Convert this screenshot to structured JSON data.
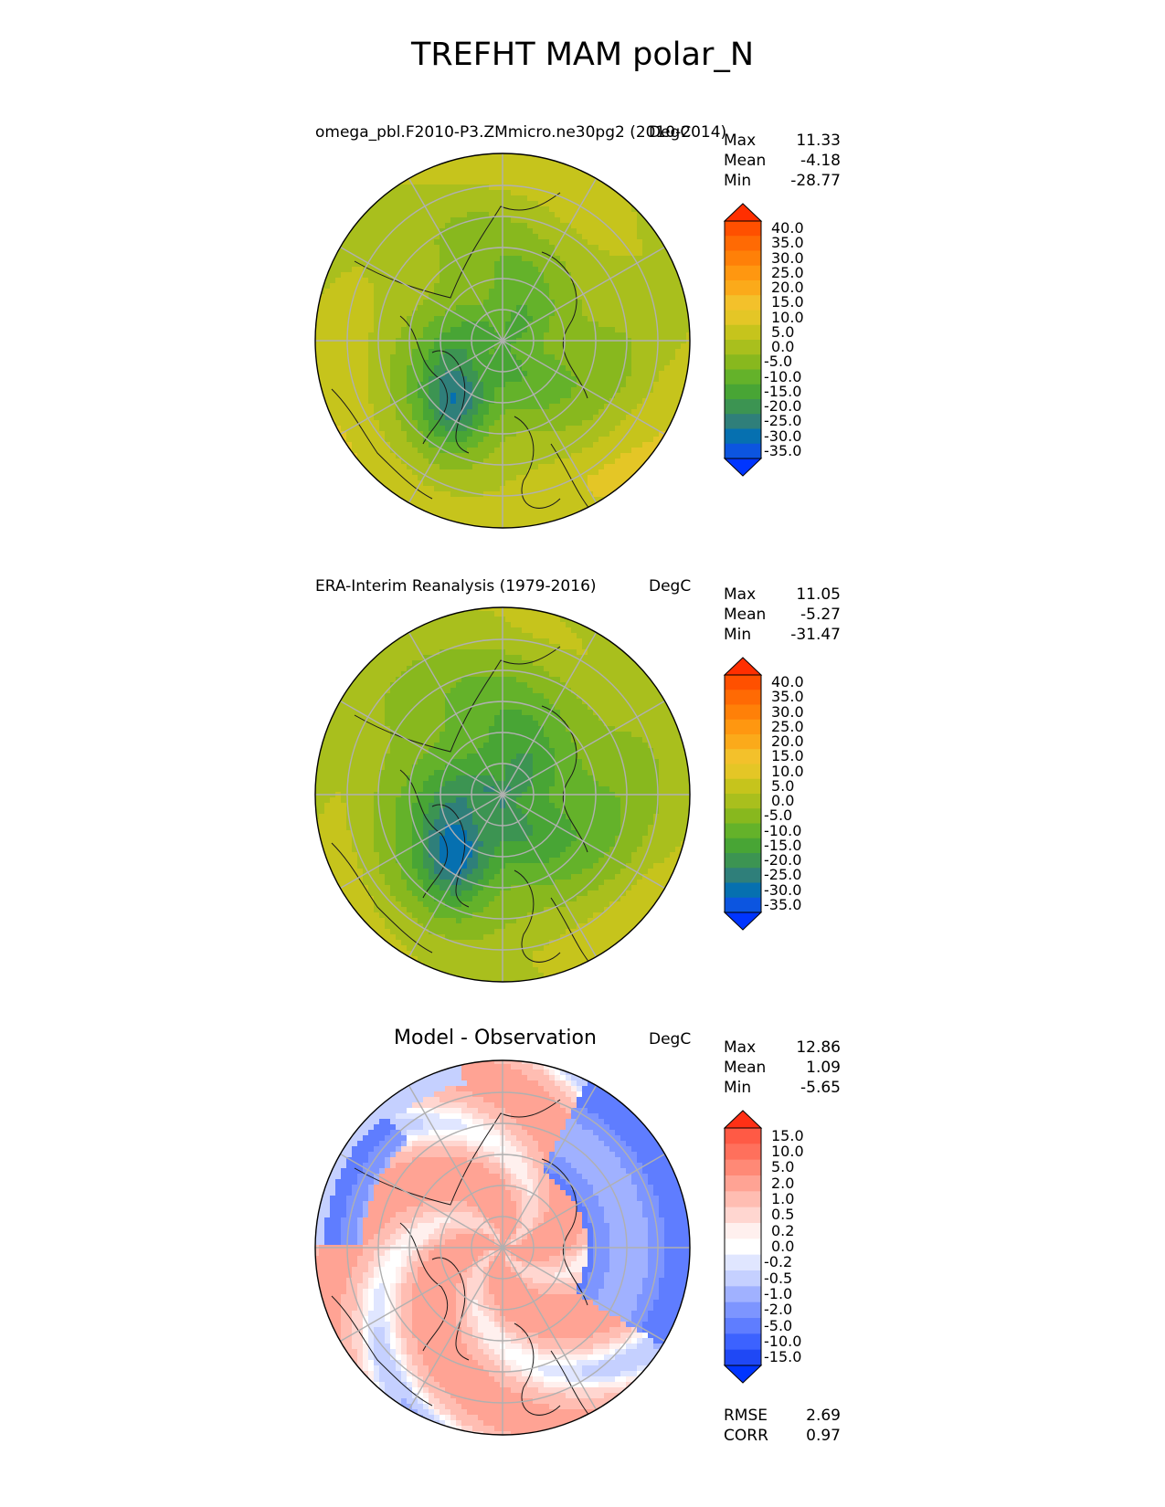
{
  "figure_title": "TREFHT MAM polar_N",
  "icons": {
    "map": "globe-icon",
    "colorbar": "gradient-icon"
  },
  "colors": {
    "contour": [
      "#0035ff",
      "#0c55e0",
      "#0670b0",
      "#2f7f7a",
      "#3c9452",
      "#48a535",
      "#64b22a",
      "#88b81e",
      "#a9bf1d",
      "#c6c41c",
      "#e4c626",
      "#f3c12b",
      "#fbaa1a",
      "#ff9710",
      "#ff8008",
      "#ff6a04",
      "#ff5000",
      "#ff2f00"
    ],
    "diff": [
      "#0035ff",
      "#1f48f5",
      "#3c62ff",
      "#5f7dff",
      "#7d95ff",
      "#a0b1ff",
      "#c5d0ff",
      "#e0e6ff",
      "#ffffff",
      "#fff0ee",
      "#ffd6d0",
      "#ffbdb2",
      "#ffa394",
      "#ff8976",
      "#ff705c",
      "#ff5a45",
      "#ff3015"
    ],
    "grid": "#b0b0b0",
    "coast": "#1a1a1a"
  },
  "panels": [
    {
      "id": "test",
      "title": "omega_pbl.F2010-P3.ZMmicro.ne30pg2 (2010-2014)",
      "units": "DegC",
      "stats": {
        "max_label": "Max",
        "max": "11.33",
        "mean_label": "Mean",
        "mean": "-4.18",
        "min_label": "Min",
        "min": "-28.77"
      },
      "colorbar": {
        "levels": [
          "40.0",
          "35.0",
          "30.0",
          "25.0",
          "20.0",
          "15.0",
          "10.0",
          "5.0",
          "0.0",
          "-5.0",
          "-10.0",
          "-15.0",
          "-20.0",
          "-25.0",
          "-30.0",
          "-35.0"
        ]
      },
      "field": {
        "center_value": -12.0,
        "rim_value": 6.0,
        "cold_pool_value": -26.0,
        "hot_rim_value": 10.0
      }
    },
    {
      "id": "ref",
      "title": "ERA-Interim Reanalysis (1979-2016)",
      "units": "DegC",
      "stats": {
        "max_label": "Max",
        "max": "11.05",
        "mean_label": "Mean",
        "mean": "-5.27",
        "min_label": "Min",
        "min": "-31.47"
      },
      "colorbar": {
        "levels": [
          "40.0",
          "35.0",
          "30.0",
          "25.0",
          "20.0",
          "15.0",
          "10.0",
          "5.0",
          "0.0",
          "-5.0",
          "-10.0",
          "-15.0",
          "-20.0",
          "-25.0",
          "-30.0",
          "-35.0"
        ]
      },
      "field": {
        "center_value": -19.0,
        "rim_value": 3.0,
        "cold_pool_value": -30.0,
        "hot_rim_value": 7.0
      }
    },
    {
      "id": "diff",
      "title": "Model - Observation",
      "units": "DegC",
      "stats": {
        "max_label": "Max",
        "max": "12.86",
        "mean_label": "Mean",
        "mean": "1.09",
        "min_label": "Min",
        "min": "-5.65"
      },
      "colorbar": {
        "levels": [
          "15.0",
          "10.0",
          "5.0",
          "2.0",
          "1.0",
          "0.5",
          "0.2",
          "0.0",
          "-0.2",
          "-0.5",
          "-1.0",
          "-2.0",
          "-5.0",
          "-10.0",
          "-15.0"
        ]
      },
      "metrics": {
        "rmse_label": "RMSE",
        "rmse": "2.69",
        "corr_label": "CORR",
        "corr": "0.97"
      }
    }
  ]
}
